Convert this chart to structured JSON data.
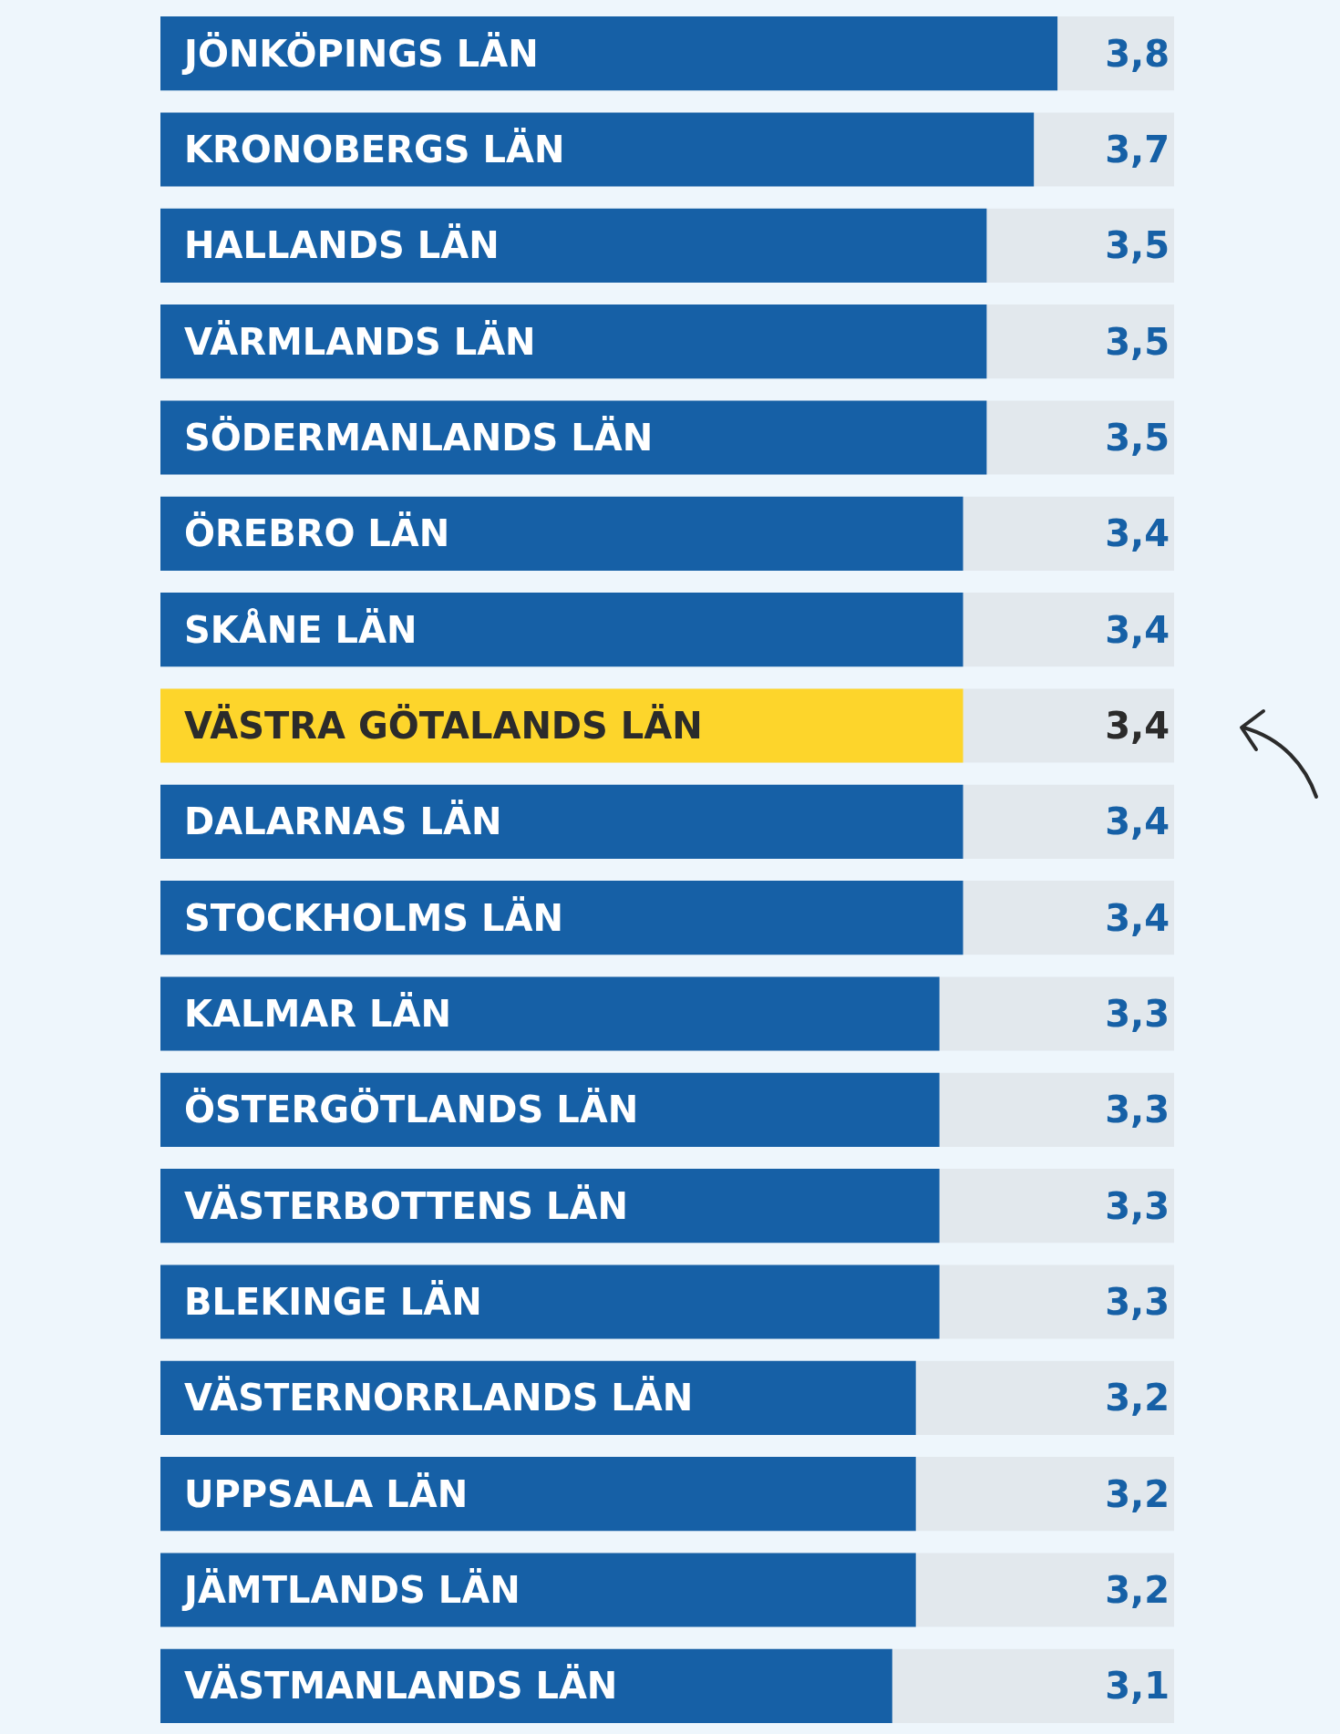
{
  "chart_data": {
    "type": "bar",
    "orientation": "horizontal",
    "categories": [
      "JÖNKÖPINGS LÄN",
      "KRONOBERGS LÄN",
      "HALLANDS LÄN",
      "VÄRMLANDS LÄN",
      "SÖDERMANLANDS LÄN",
      "ÖREBRO LÄN",
      "SKÅNE LÄN",
      "VÄSTRA GÖTALANDS LÄN",
      "DALARNAS LÄN",
      "STOCKHOLMS LÄN",
      "KALMAR LÄN",
      "ÖSTERGÖTLANDS LÄN",
      "VÄSTERBOTTENS LÄN",
      "BLEKINGE LÄN",
      "VÄSTERNORRLANDS LÄN",
      "UPPSALA LÄN",
      "JÄMTLANDS LÄN",
      "VÄSTMANLANDS LÄN"
    ],
    "values": [
      3.8,
      3.7,
      3.5,
      3.5,
      3.5,
      3.4,
      3.4,
      3.4,
      3.4,
      3.4,
      3.3,
      3.3,
      3.3,
      3.3,
      3.2,
      3.2,
      3.2,
      3.1
    ],
    "value_labels": [
      "3,8",
      "3,7",
      "3,5",
      "3,5",
      "3,5",
      "3,4",
      "3,4",
      "3,4",
      "3,4",
      "3,4",
      "3,3",
      "3,3",
      "3,3",
      "3,3",
      "3,2",
      "3,2",
      "3,2",
      "3,1"
    ],
    "colors": [
      "#1660a6",
      "#1660a6",
      "#1660a6",
      "#1660a6",
      "#1660a6",
      "#1660a6",
      "#1660a6",
      "#fdd52b",
      "#1660a6",
      "#1660a6",
      "#1660a6",
      "#1660a6",
      "#1660a6",
      "#1660a6",
      "#1660a6",
      "#1660a6",
      "#1660a6",
      "#1660a6"
    ]
  }
}
